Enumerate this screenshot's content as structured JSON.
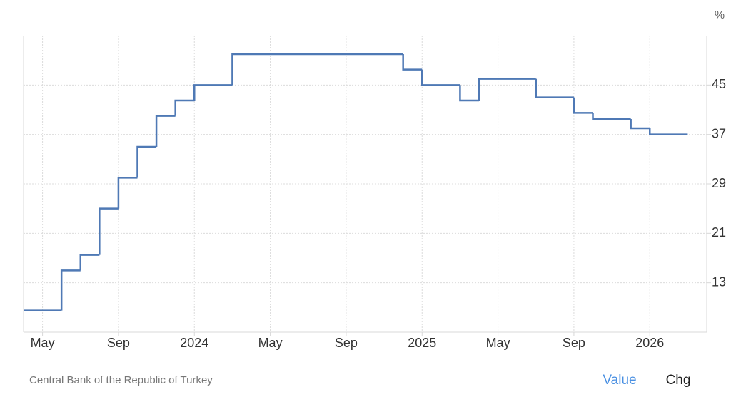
{
  "chart_data": {
    "type": "line",
    "step": true,
    "unit": "%",
    "source": "Central Bank of the Republic of Turkey",
    "tabs": [
      "Value",
      "Chg"
    ],
    "x": [
      "2023-04",
      "2023-06",
      "2023-07",
      "2023-08",
      "2023-09",
      "2023-10",
      "2023-11",
      "2023-12",
      "2024-01",
      "2024-03",
      "2024-12",
      "2025-01",
      "2025-03",
      "2025-04",
      "2025-07",
      "2025-09",
      "2025-10",
      "2025-12",
      "2026-01",
      "2026-03"
    ],
    "series": [
      {
        "name": "Value",
        "color": "#4f79b5",
        "values": [
          8.5,
          15,
          17.5,
          25,
          30,
          35,
          40,
          42.5,
          45,
          50,
          47.5,
          45,
          42.5,
          46,
          43,
          40.5,
          39.5,
          38,
          37,
          37
        ]
      }
    ],
    "xlim": [
      "2023-04",
      "2026-04"
    ],
    "xticks": [
      {
        "value": "2023-05",
        "label": "May"
      },
      {
        "value": "2023-09",
        "label": "Sep"
      },
      {
        "value": "2024-01",
        "label": "2024"
      },
      {
        "value": "2024-05",
        "label": "May"
      },
      {
        "value": "2024-09",
        "label": "Sep"
      },
      {
        "value": "2025-01",
        "label": "2025"
      },
      {
        "value": "2025-05",
        "label": "May"
      },
      {
        "value": "2025-09",
        "label": "Sep"
      },
      {
        "value": "2026-01",
        "label": "2026"
      }
    ],
    "ylim": [
      5,
      53
    ],
    "yticks": [
      13,
      21,
      29,
      37,
      45
    ],
    "grid": true
  }
}
